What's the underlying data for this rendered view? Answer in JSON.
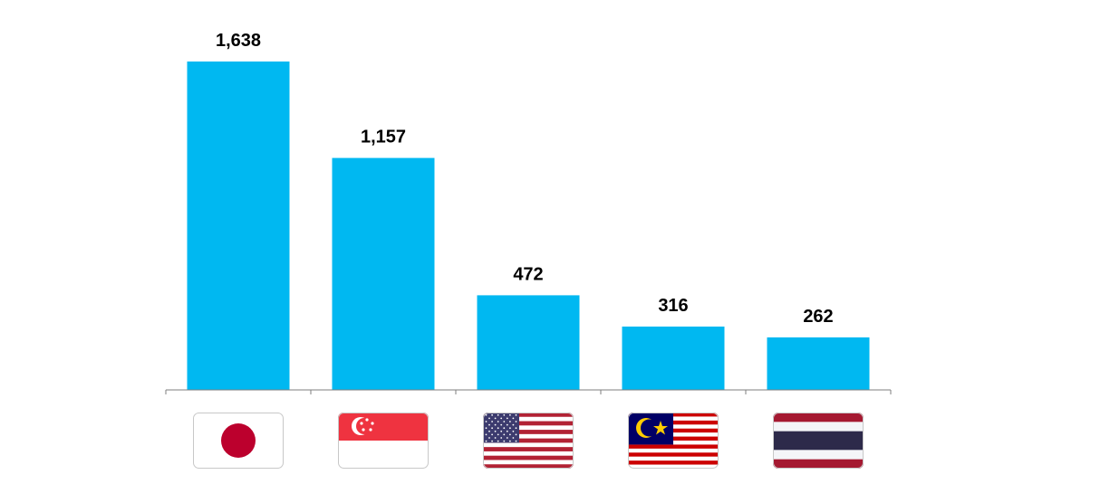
{
  "chart_data": {
    "type": "bar",
    "categories": [
      "Japan",
      "Singapore",
      "United States",
      "Malaysia",
      "Thailand"
    ],
    "category_icons": [
      "japan-flag-icon",
      "singapore-flag-icon",
      "usa-flag-icon",
      "malaysia-flag-icon",
      "thailand-flag-icon"
    ],
    "values": [
      1638,
      1157,
      472,
      316,
      262
    ],
    "value_labels": [
      "1,638",
      "1,157",
      "472",
      "316",
      "262"
    ],
    "title": "",
    "xlabel": "",
    "ylabel": "",
    "ylim": [
      0,
      1638
    ],
    "grid": false,
    "legend": "none",
    "bar_color": "#00B8F1"
  }
}
